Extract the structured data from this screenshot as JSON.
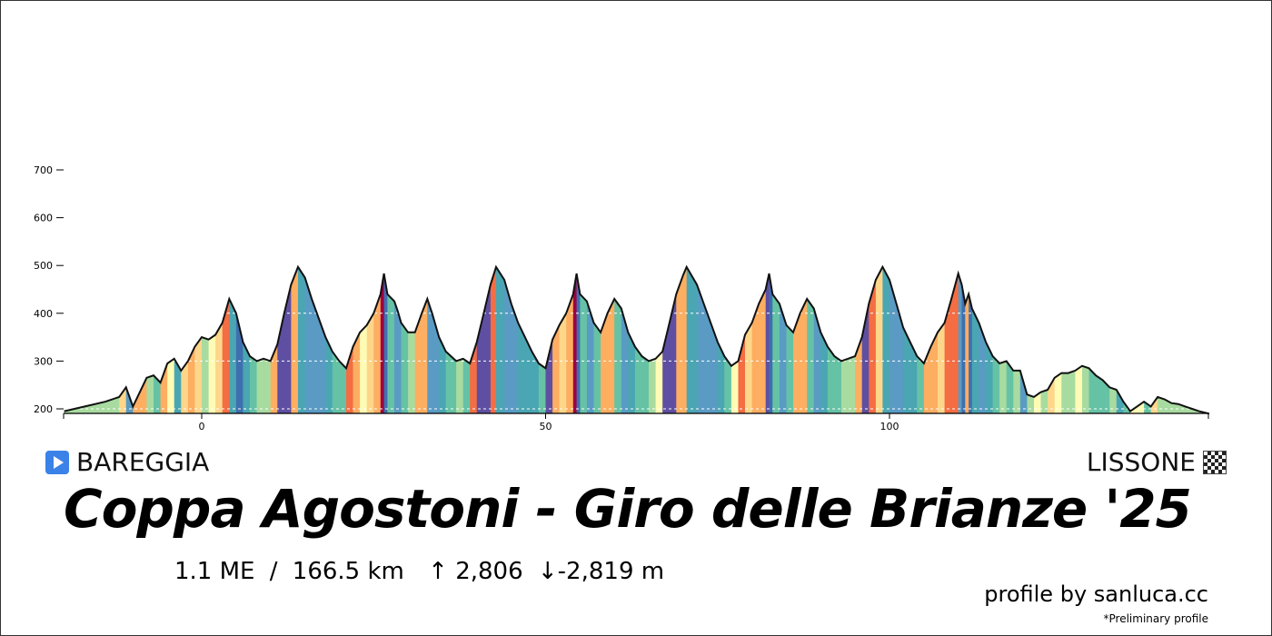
{
  "chart_data": {
    "type": "area",
    "title": "Coppa Agostoni - Giro delle Brianze '25",
    "xlabel": "",
    "ylabel": "",
    "xlim": [
      -20,
      146.5
    ],
    "ylim": [
      190,
      720
    ],
    "x_ticks": [
      0,
      50,
      100
    ],
    "y_ticks": [
      200,
      300,
      400,
      500,
      600,
      700
    ],
    "grid": "horizontal-dashed",
    "fill": "gradient-colored-segments",
    "profile": [
      [
        -20,
        195
      ],
      [
        -17,
        205
      ],
      [
        -14,
        215
      ],
      [
        -12,
        225
      ],
      [
        -11,
        245
      ],
      [
        -10,
        205
      ],
      [
        -9,
        235
      ],
      [
        -8,
        265
      ],
      [
        -7,
        270
      ],
      [
        -6,
        255
      ],
      [
        -5,
        295
      ],
      [
        -4,
        305
      ],
      [
        -3,
        280
      ],
      [
        -2,
        300
      ],
      [
        -1,
        330
      ],
      [
        0,
        350
      ],
      [
        1,
        345
      ],
      [
        2,
        355
      ],
      [
        3,
        380
      ],
      [
        4,
        430
      ],
      [
        5,
        400
      ],
      [
        6,
        340
      ],
      [
        7,
        310
      ],
      [
        8,
        300
      ],
      [
        9,
        305
      ],
      [
        10,
        300
      ],
      [
        11,
        335
      ],
      [
        12,
        400
      ],
      [
        13,
        460
      ],
      [
        14,
        497
      ],
      [
        15,
        475
      ],
      [
        16,
        430
      ],
      [
        17,
        390
      ],
      [
        18,
        350
      ],
      [
        19,
        320
      ],
      [
        20,
        300
      ],
      [
        21,
        285
      ],
      [
        22,
        330
      ],
      [
        23,
        360
      ],
      [
        24,
        375
      ],
      [
        25,
        400
      ],
      [
        26,
        440
      ],
      [
        26.5,
        483
      ],
      [
        27,
        440
      ],
      [
        28,
        425
      ],
      [
        28.5,
        405
      ],
      [
        29,
        380
      ],
      [
        30,
        360
      ],
      [
        31,
        360
      ],
      [
        32,
        400
      ],
      [
        32.8,
        430
      ],
      [
        33.5,
        400
      ],
      [
        34.5,
        350
      ],
      [
        35.5,
        320
      ],
      [
        37,
        300
      ],
      [
        38,
        305
      ],
      [
        39,
        295
      ],
      [
        40,
        340
      ],
      [
        41,
        400
      ],
      [
        42,
        460
      ],
      [
        42.8,
        497
      ],
      [
        44,
        470
      ],
      [
        45,
        420
      ],
      [
        46,
        380
      ],
      [
        47,
        350
      ],
      [
        48,
        320
      ],
      [
        49,
        295
      ],
      [
        50,
        285
      ],
      [
        51,
        345
      ],
      [
        52,
        375
      ],
      [
        53,
        400
      ],
      [
        54,
        440
      ],
      [
        54.5,
        483
      ],
      [
        55,
        440
      ],
      [
        56,
        425
      ],
      [
        57,
        380
      ],
      [
        58,
        360
      ],
      [
        59,
        400
      ],
      [
        60,
        430
      ],
      [
        61,
        410
      ],
      [
        62,
        360
      ],
      [
        63,
        330
      ],
      [
        64,
        310
      ],
      [
        65,
        300
      ],
      [
        66,
        305
      ],
      [
        67,
        320
      ],
      [
        68,
        380
      ],
      [
        69,
        440
      ],
      [
        70,
        480
      ],
      [
        70.5,
        497
      ],
      [
        72,
        460
      ],
      [
        73,
        420
      ],
      [
        74,
        380
      ],
      [
        75,
        340
      ],
      [
        76,
        310
      ],
      [
        77,
        290
      ],
      [
        78,
        300
      ],
      [
        79,
        355
      ],
      [
        80,
        380
      ],
      [
        81,
        420
      ],
      [
        82,
        450
      ],
      [
        82.5,
        483
      ],
      [
        83,
        440
      ],
      [
        84,
        420
      ],
      [
        85,
        375
      ],
      [
        86,
        360
      ],
      [
        87,
        400
      ],
      [
        88,
        430
      ],
      [
        89,
        410
      ],
      [
        90,
        360
      ],
      [
        91,
        330
      ],
      [
        92,
        310
      ],
      [
        93,
        300
      ],
      [
        95,
        310
      ],
      [
        96,
        350
      ],
      [
        97,
        420
      ],
      [
        98,
        470
      ],
      [
        99,
        497
      ],
      [
        100,
        470
      ],
      [
        101,
        420
      ],
      [
        102,
        370
      ],
      [
        103,
        340
      ],
      [
        104,
        310
      ],
      [
        105,
        295
      ],
      [
        106,
        330
      ],
      [
        107,
        360
      ],
      [
        108,
        380
      ],
      [
        109,
        430
      ],
      [
        110,
        483
      ],
      [
        110.5,
        460
      ],
      [
        111,
        420
      ],
      [
        111.5,
        440
      ],
      [
        112,
        410
      ],
      [
        113,
        380
      ],
      [
        114,
        340
      ],
      [
        115,
        310
      ],
      [
        116,
        295
      ],
      [
        117,
        300
      ],
      [
        118,
        280
      ],
      [
        119,
        280
      ],
      [
        120,
        230
      ],
      [
        121,
        225
      ],
      [
        122,
        235
      ],
      [
        123,
        240
      ],
      [
        124,
        265
      ],
      [
        125,
        275
      ],
      [
        126,
        275
      ],
      [
        127,
        280
      ],
      [
        128,
        290
      ],
      [
        129,
        285
      ],
      [
        130,
        270
      ],
      [
        131,
        260
      ],
      [
        132,
        245
      ],
      [
        133,
        240
      ],
      [
        134,
        215
      ],
      [
        135,
        195
      ],
      [
        136,
        205
      ],
      [
        137,
        215
      ],
      [
        138,
        205
      ],
      [
        139,
        225
      ],
      [
        140,
        220
      ],
      [
        141,
        212
      ],
      [
        142,
        210
      ],
      [
        143,
        205
      ],
      [
        144,
        200
      ],
      [
        145,
        195
      ],
      [
        146.5,
        190
      ]
    ]
  },
  "start_location": "BAREGGIA",
  "finish_location": "LISSONE",
  "race_title": "Coppa Agostoni - Giro delle Brianze '25",
  "stats": {
    "me": "1.1 ME",
    "separator": "/",
    "distance": "166.5 km",
    "ascent": "↑ 2,806",
    "descent": "↓-2,819 m"
  },
  "credit": "profile by sanluca.cc",
  "note": "*Preliminary profile",
  "icons": {
    "start": "play-icon",
    "finish": "checkered-flag-icon"
  },
  "colors": {
    "accent_blue": "#3b82e8",
    "gradient": [
      "#fefbb5",
      "#b6e1a2",
      "#66c2a5",
      "#4aa6b2",
      "#3e8fc0",
      "#5e4fa2",
      "#fdae61",
      "#f46d43",
      "#9e0142"
    ]
  }
}
